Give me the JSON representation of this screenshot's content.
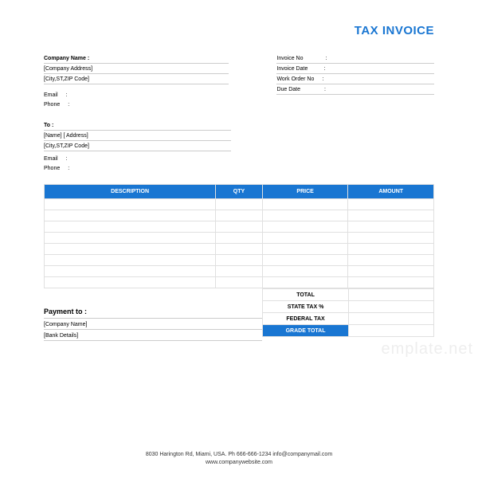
{
  "title": "TAX INVOICE",
  "colors": {
    "accent": "#1976d2",
    "border": "#e0e0e0",
    "line": "#cccccc"
  },
  "company": {
    "name_label": "Company Name :",
    "address": "[Company Address]",
    "city": "[City,ST,ZIP Code]",
    "email_label": "Email",
    "phone_label": "Phone"
  },
  "invoice": {
    "no_label": "Invoice No",
    "date_label": "Invoice Date",
    "workorder_label": "Work Order No",
    "due_label": "Due Date"
  },
  "to": {
    "label": "To :",
    "name_address": "[Name] [ Address]",
    "city": "[City,ST,ZIP Code]",
    "email_label": "Email",
    "phone_label": "Phone"
  },
  "columns": {
    "description": "DESCRIPTION",
    "qty": "QTY",
    "price": "PRICE",
    "amount": "AMOUNT"
  },
  "row_count": 8,
  "totals": {
    "total": "TOTAL",
    "state_tax": "STATE TAX %",
    "federal_tax": "FEDERAL TAX",
    "grand": "GRADE TOTAL"
  },
  "payment": {
    "title": "Payment to :",
    "company": "[Company Name]",
    "bank": "[Bank Details]"
  },
  "footer": {
    "line1": "8030 Harington Rd, Miami, USA.    Ph  666-666-1234      info@companymail.com",
    "line2": "www.companywebsite.com"
  },
  "watermark": "emplate.net"
}
